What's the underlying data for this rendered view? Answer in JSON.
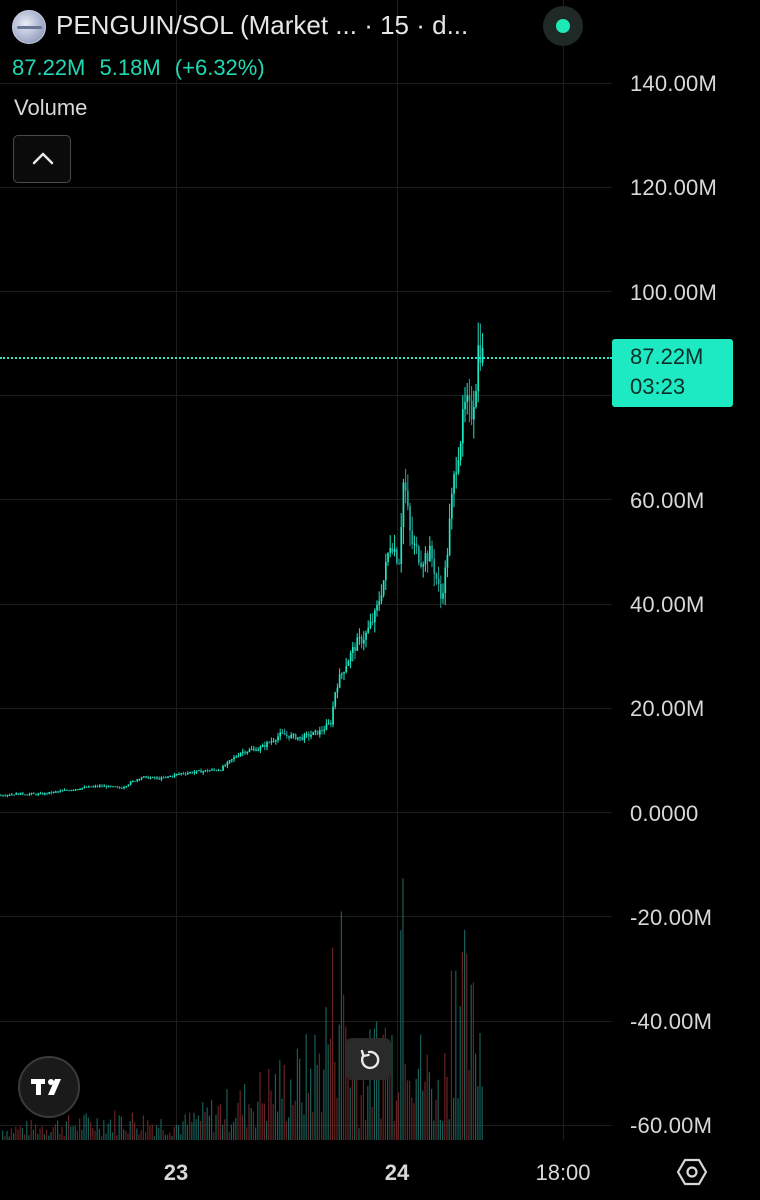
{
  "header": {
    "title": "PENGUIN/SOL (Market ... · 15 · d...",
    "volume_values": [
      "87.22M",
      "5.18M",
      "(+6.32%)"
    ],
    "volume_title": "Volume"
  },
  "price_tag": {
    "value": "87.22M",
    "countdown": "03:23"
  },
  "colors": {
    "accent": "#1de9c2",
    "background": "#000000",
    "up": "#26a69a",
    "down": "#ef5350"
  },
  "icons": {
    "collapse": "chevron-up-icon",
    "logo": "tradingview-logo-icon",
    "reset": "reset-icon",
    "settings": "settings-hexagon-icon"
  },
  "chart_data": {
    "type": "candlestick",
    "y_axis": {
      "ticks": [
        "140.00M",
        "120.00M",
        "100.00M",
        "60.00M",
        "40.00M",
        "20.00M",
        "0.0000",
        "-20.00M",
        "-40.00M",
        "-60.00M"
      ],
      "range": [
        -62,
        144
      ]
    },
    "x_axis": {
      "ticks": [
        "23",
        "24",
        "18:00"
      ]
    },
    "last_value": 87.22,
    "price_path": [
      [
        0,
        3.3
      ],
      [
        20,
        3.5
      ],
      [
        40,
        3.4
      ],
      [
        60,
        4.0
      ],
      [
        80,
        4.6
      ],
      [
        100,
        5.0
      ],
      [
        120,
        4.6
      ],
      [
        140,
        6.7
      ],
      [
        160,
        6.4
      ],
      [
        180,
        7.4
      ],
      [
        200,
        7.8
      ],
      [
        220,
        8.2
      ],
      [
        240,
        11.5
      ],
      [
        260,
        12.3
      ],
      [
        280,
        14.9
      ],
      [
        300,
        14.2
      ],
      [
        320,
        15.5
      ],
      [
        330,
        17.2
      ],
      [
        335,
        24.0
      ],
      [
        345,
        28.4
      ],
      [
        355,
        32.1
      ],
      [
        365,
        34.0
      ],
      [
        375,
        38.0
      ],
      [
        383,
        44.7
      ],
      [
        390,
        52.5
      ],
      [
        398,
        48.0
      ],
      [
        403,
        64.5
      ],
      [
        410,
        52.0
      ],
      [
        420,
        48.6
      ],
      [
        430,
        49.7
      ],
      [
        440,
        41.0
      ],
      [
        445,
        46.6
      ],
      [
        450,
        58.0
      ],
      [
        455,
        67.0
      ],
      [
        460,
        72.4
      ],
      [
        465,
        78.3
      ],
      [
        470,
        76.0
      ],
      [
        475,
        82.5
      ],
      [
        478,
        90.5
      ],
      [
        482,
        87.22
      ]
    ],
    "volume_profile": [
      [
        0,
        2
      ],
      [
        60,
        3
      ],
      [
        120,
        4
      ],
      [
        180,
        3
      ],
      [
        220,
        6
      ],
      [
        240,
        7
      ],
      [
        270,
        10
      ],
      [
        300,
        12
      ],
      [
        320,
        16
      ],
      [
        335,
        28
      ],
      [
        340,
        34
      ],
      [
        350,
        18
      ],
      [
        360,
        10
      ],
      [
        370,
        14
      ],
      [
        385,
        20
      ],
      [
        395,
        16
      ],
      [
        402,
        55
      ],
      [
        410,
        24
      ],
      [
        420,
        14
      ],
      [
        430,
        12
      ],
      [
        440,
        8
      ],
      [
        448,
        18
      ],
      [
        455,
        40
      ],
      [
        462,
        28
      ],
      [
        470,
        20
      ],
      [
        478,
        24
      ],
      [
        482,
        14
      ]
    ]
  }
}
